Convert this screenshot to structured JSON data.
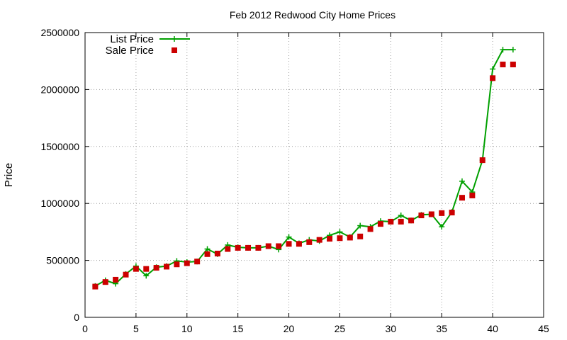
{
  "chart_data": {
    "type": "line",
    "title": "Feb 2012 Redwood City Home Prices",
    "xlabel": "",
    "ylabel": "Price",
    "xlim": [
      0,
      45
    ],
    "ylim": [
      0,
      2500000
    ],
    "x_ticks": [
      0,
      5,
      10,
      15,
      20,
      25,
      30,
      35,
      40,
      45
    ],
    "y_ticks": [
      0,
      500000,
      1000000,
      1500000,
      2000000,
      2500000
    ],
    "grid": true,
    "legend_position": "top-left",
    "series": [
      {
        "name": "List Price",
        "style": "line-with-plus-markers",
        "color": "#00a000",
        "x": [
          1,
          2,
          3,
          4,
          5,
          6,
          7,
          8,
          9,
          10,
          11,
          12,
          13,
          14,
          15,
          16,
          17,
          18,
          19,
          20,
          21,
          22,
          23,
          24,
          25,
          26,
          27,
          28,
          29,
          30,
          31,
          32,
          33,
          34,
          35,
          36,
          37,
          38,
          39,
          40,
          41,
          42
        ],
        "values": [
          275000,
          325000,
          295000,
          380000,
          450000,
          365000,
          440000,
          450000,
          495000,
          485000,
          490000,
          600000,
          555000,
          635000,
          615000,
          610000,
          610000,
          625000,
          595000,
          705000,
          650000,
          680000,
          670000,
          720000,
          750000,
          705000,
          805000,
          795000,
          845000,
          840000,
          895000,
          850000,
          900000,
          905000,
          795000,
          925000,
          1195000,
          1100000,
          1380000,
          2180000,
          2350000,
          2350000
        ]
      },
      {
        "name": "Sale Price",
        "style": "square-markers",
        "color": "#cc0000",
        "x": [
          1,
          2,
          3,
          4,
          5,
          6,
          7,
          8,
          9,
          10,
          11,
          12,
          13,
          14,
          15,
          16,
          17,
          18,
          19,
          20,
          21,
          22,
          23,
          24,
          25,
          26,
          27,
          28,
          29,
          30,
          31,
          32,
          33,
          34,
          35,
          36,
          37,
          38,
          39,
          40,
          41,
          42
        ],
        "values": [
          270000,
          310000,
          330000,
          375000,
          425000,
          425000,
          435000,
          445000,
          465000,
          475000,
          490000,
          555000,
          560000,
          600000,
          610000,
          610000,
          610000,
          625000,
          625000,
          645000,
          645000,
          660000,
          680000,
          690000,
          695000,
          700000,
          710000,
          775000,
          820000,
          840000,
          840000,
          850000,
          895000,
          905000,
          915000,
          920000,
          1050000,
          1070000,
          1380000,
          2100000,
          2220000,
          2220000
        ]
      }
    ]
  }
}
